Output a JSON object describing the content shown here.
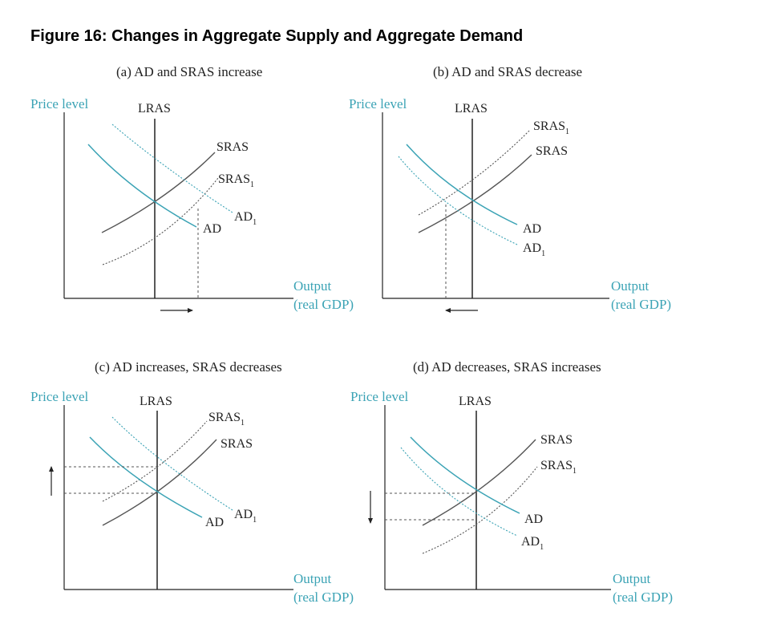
{
  "title": "Figure 16: Changes in Aggregate Supply and Aggregate Demand",
  "colors": {
    "ad": "#3ba3b5",
    "sras": "#555555",
    "axis": "#222222",
    "text": "#222222"
  },
  "labels": {
    "y_axis": "Price level",
    "x_axis_line1": "Output",
    "x_axis_line2": "(real GDP)",
    "lras": "LRAS",
    "sras": "SRAS",
    "sras1": "SRAS",
    "ad": "AD",
    "ad1": "AD",
    "subscript": "1"
  },
  "panels": [
    {
      "caption": "(a) AD and SRAS increase"
    },
    {
      "caption": "(b) AD and SRAS decrease"
    },
    {
      "caption": "(c) AD increases, SRAS decreases"
    },
    {
      "caption": "(d) AD decreases, SRAS increases"
    }
  ]
}
